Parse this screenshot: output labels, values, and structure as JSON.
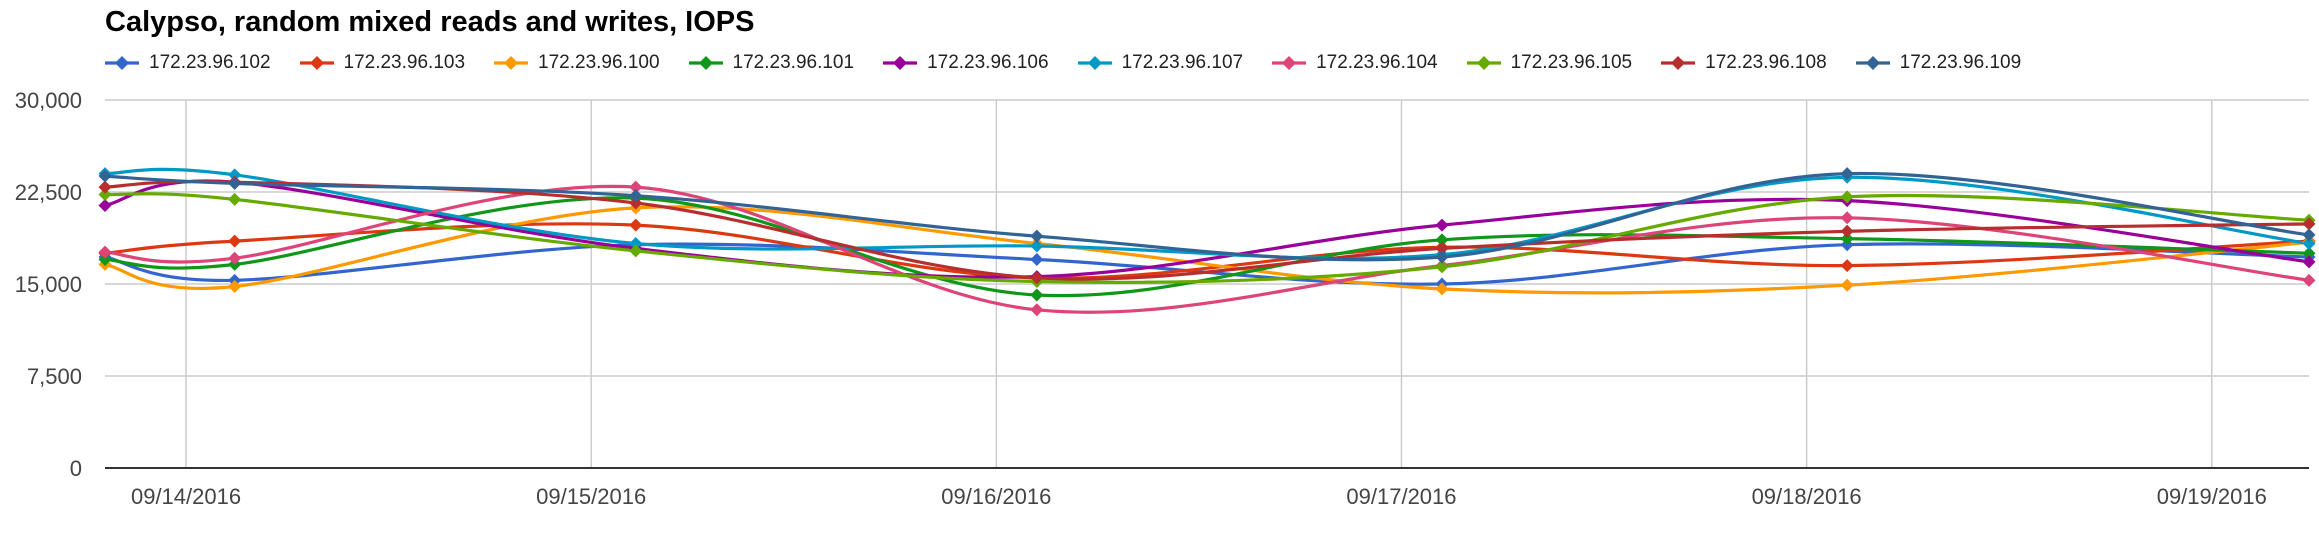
{
  "chart_data": {
    "type": "line",
    "title": "Calypso, random mixed reads and writes, IOPS",
    "xlabel": "",
    "ylabel": "",
    "x": [
      0.0,
      1.0,
      2.1,
      3.1,
      4.1,
      5.0
    ],
    "x_range": [
      -0.2,
      5.24
    ],
    "ylim": [
      0,
      30000
    ],
    "y_ticks": [
      0,
      7500,
      15000,
      22500,
      30000
    ],
    "y_tick_labels": [
      "0",
      "7,500",
      "15,000",
      "22,500",
      "30,000"
    ],
    "x_ticks": [
      0,
      1,
      2,
      3,
      4,
      5
    ],
    "x_tick_labels": [
      "09/14/2016",
      "09/15/2016",
      "09/16/2016",
      "09/17/2016",
      "09/18/2016",
      "09/19/2016"
    ],
    "grid": true,
    "legend_position": "top",
    "series": [
      {
        "name": "172.23.96.102",
        "color": "#3366cc",
        "x": [
          -0.2,
          0.12,
          1.11,
          2.1,
          3.1,
          4.1,
          5.24
        ],
        "y": [
          17200,
          15300,
          18200,
          17000,
          15000,
          18200,
          17200
        ]
      },
      {
        "name": "172.23.96.103",
        "color": "#dc3912",
        "x": [
          -0.2,
          0.12,
          1.11,
          2.1,
          3.1,
          4.1,
          5.24
        ],
        "y": [
          17500,
          18500,
          19800,
          15500,
          18000,
          16500,
          18500
        ]
      },
      {
        "name": "172.23.96.100",
        "color": "#ff9900",
        "x": [
          -0.2,
          0.12,
          1.11,
          2.1,
          3.1,
          4.1,
          5.24
        ],
        "y": [
          16600,
          14800,
          21200,
          18300,
          14600,
          14900,
          18400
        ]
      },
      {
        "name": "172.23.96.101",
        "color": "#109618",
        "x": [
          -0.2,
          0.12,
          1.11,
          2.1,
          3.1,
          4.1,
          5.24
        ],
        "y": [
          17000,
          16600,
          22000,
          14100,
          18600,
          18700,
          17500
        ]
      },
      {
        "name": "172.23.96.106",
        "color": "#990099",
        "x": [
          -0.2,
          0.12,
          1.11,
          2.1,
          3.1,
          4.1,
          5.24
        ],
        "y": [
          21400,
          23300,
          17900,
          15600,
          19800,
          21800,
          16800
        ]
      },
      {
        "name": "172.23.96.107",
        "color": "#0099c6",
        "x": [
          -0.2,
          0.12,
          1.11,
          2.1,
          3.1,
          4.1,
          5.24
        ],
        "y": [
          24000,
          23900,
          18300,
          18100,
          17400,
          23700,
          18300
        ]
      },
      {
        "name": "172.23.96.104",
        "color": "#dd4477",
        "x": [
          -0.2,
          0.12,
          1.11,
          2.1,
          3.1,
          4.1,
          5.24
        ],
        "y": [
          17600,
          17100,
          22900,
          12900,
          16500,
          20400,
          15300
        ]
      },
      {
        "name": "172.23.96.105",
        "color": "#66aa00",
        "x": [
          -0.2,
          0.12,
          1.11,
          2.1,
          3.1,
          4.1,
          5.24
        ],
        "y": [
          22300,
          21900,
          17700,
          15200,
          16400,
          22100,
          20200
        ]
      },
      {
        "name": "172.23.96.108",
        "color": "#b82e2e",
        "x": [
          -0.2,
          0.12,
          1.11,
          2.1,
          3.1,
          4.1,
          5.24
        ],
        "y": [
          22900,
          23300,
          21600,
          15500,
          17900,
          19300,
          19900
        ]
      },
      {
        "name": "172.23.96.109",
        "color": "#316395",
        "x": [
          -0.2,
          0.12,
          1.11,
          2.1,
          3.1,
          4.1,
          5.24
        ],
        "y": [
          23800,
          23200,
          22200,
          18900,
          17200,
          24000,
          19000
        ]
      }
    ]
  }
}
